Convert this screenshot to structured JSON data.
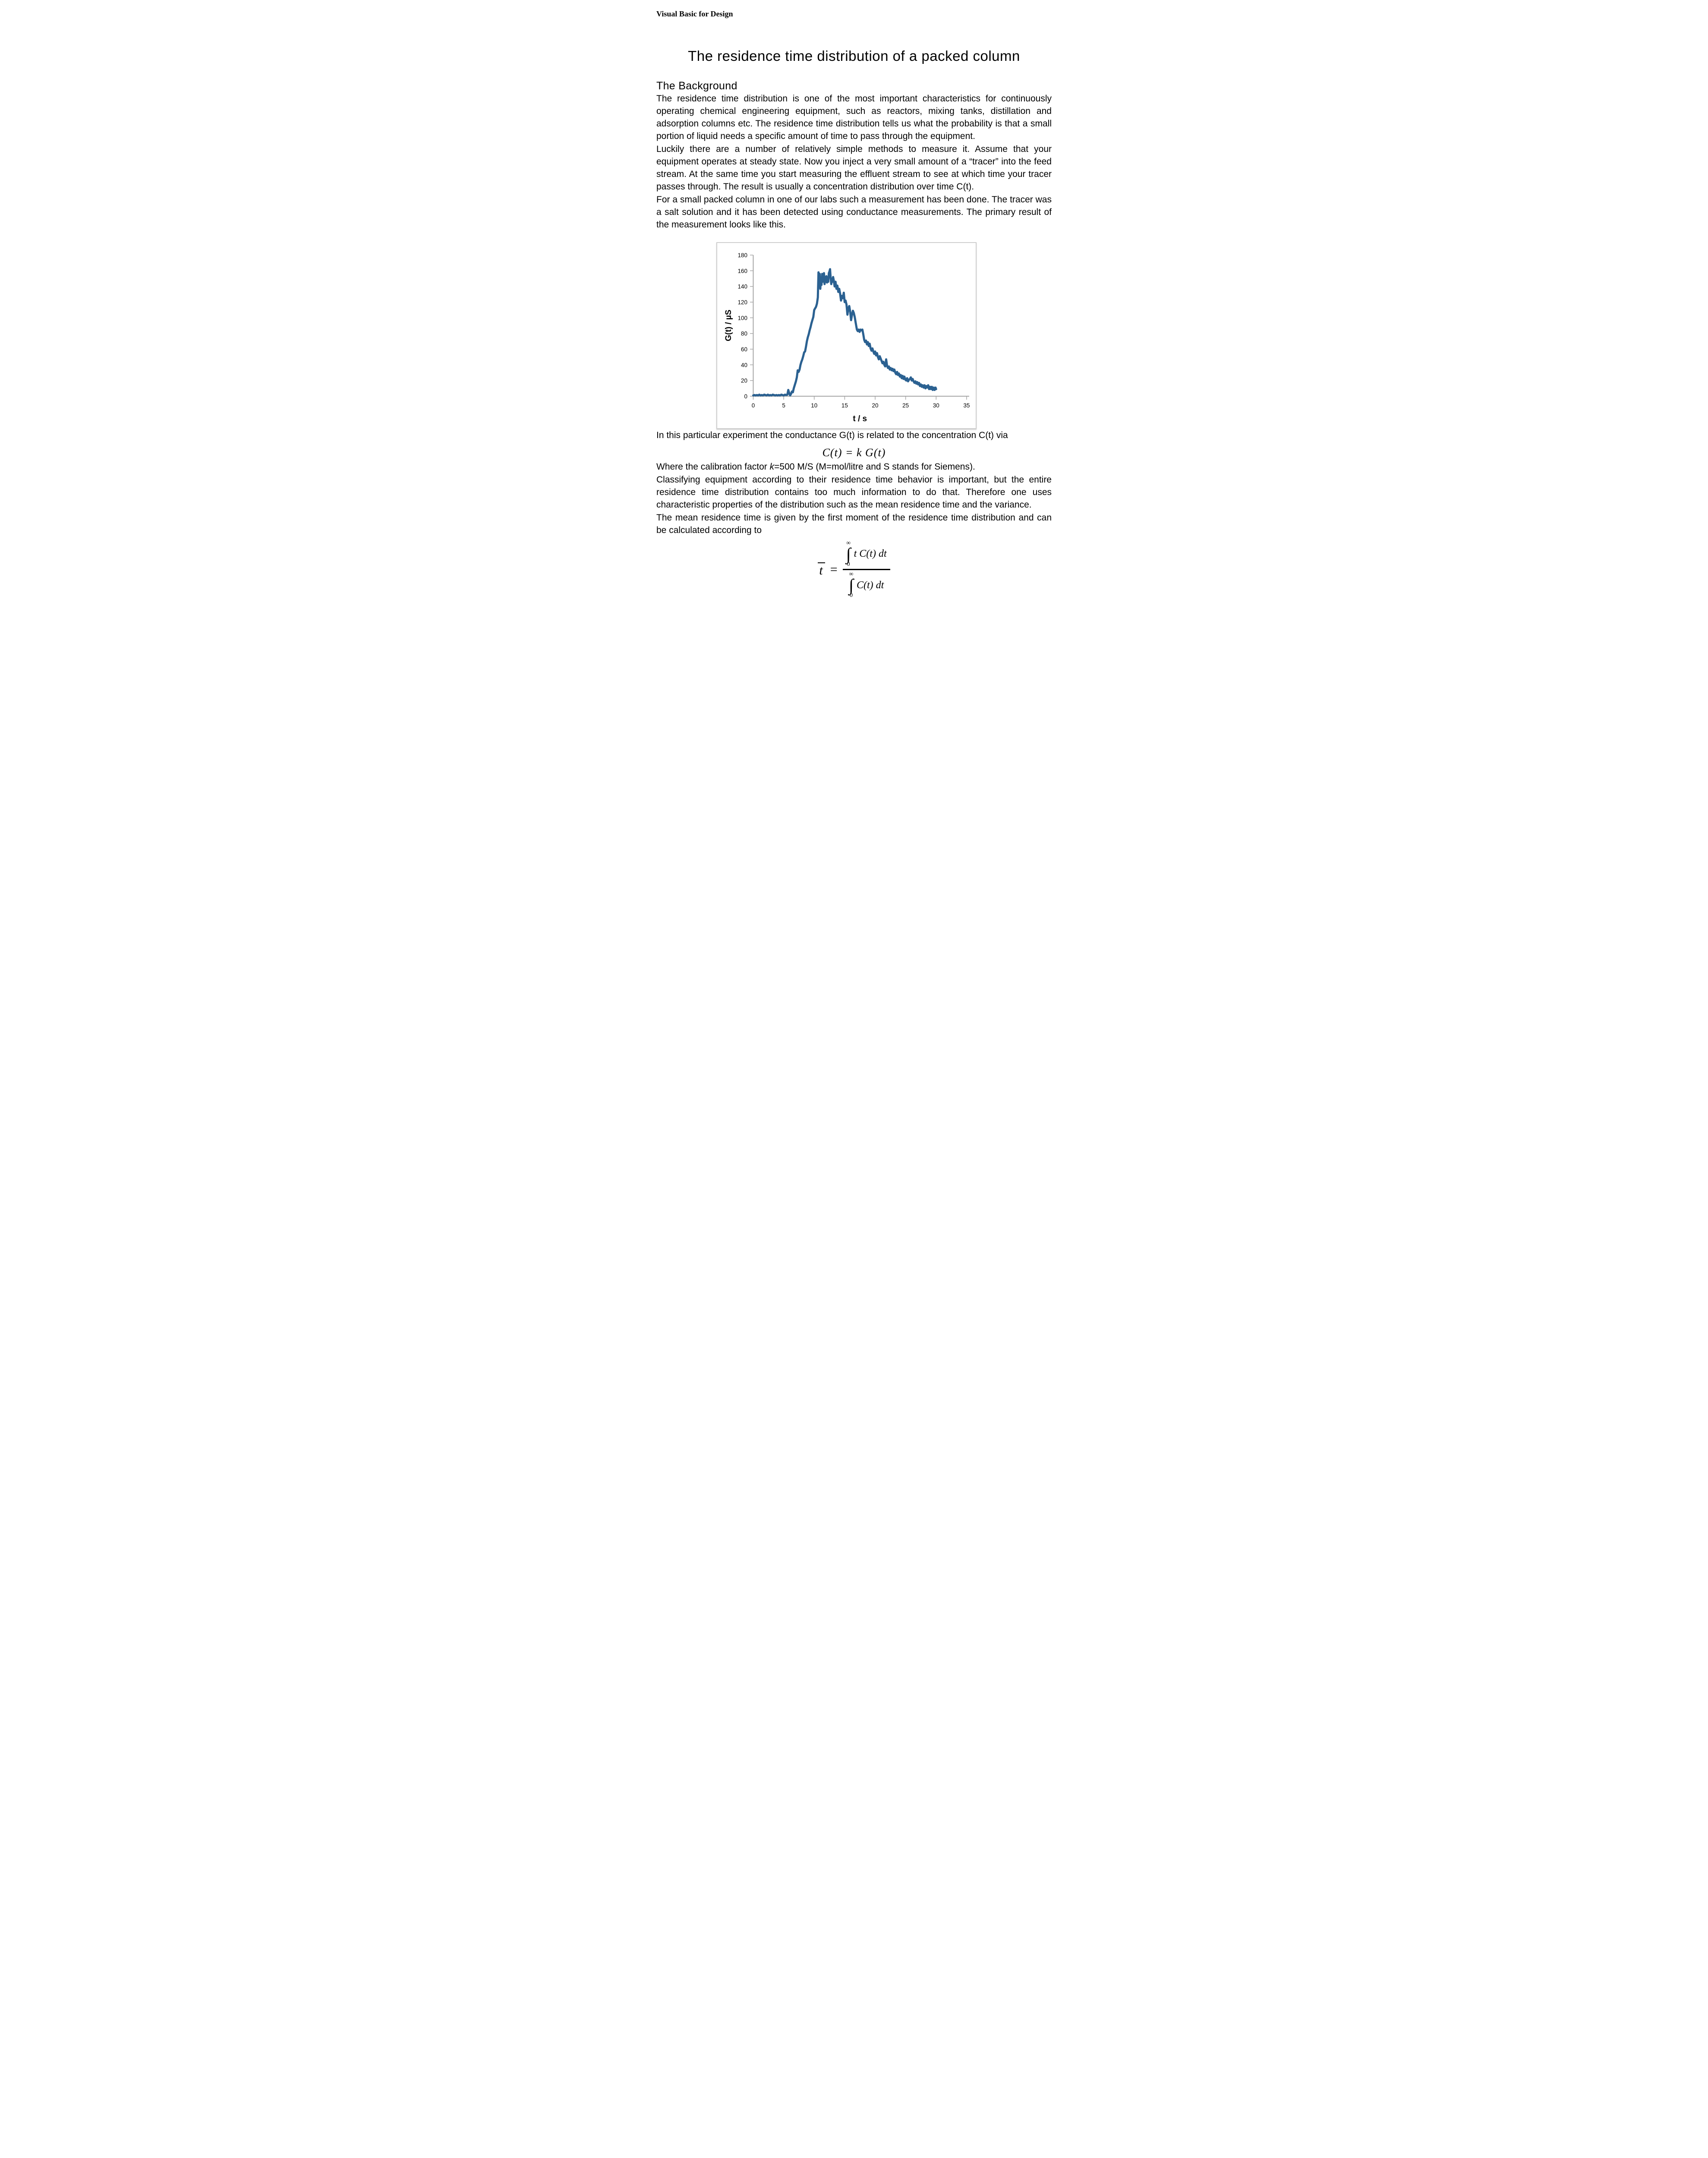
{
  "header": {
    "text": "Visual Basic for Design"
  },
  "title": "The residence time distribution of a packed column",
  "sections": {
    "background_heading": "The Background"
  },
  "paragraphs": {
    "p1": "The residence time distribution is one of the most important characteristics for continuously operating chemical engineering equipment, such as reactors, mixing tanks, distillation and adsorption columns etc. The residence time distribution tells us what the probability is that a small portion of liquid needs a specific amount of time to pass through the equipment.",
    "p2": "Luckily there are a number of relatively simple methods to measure it. Assume that your equipment operates at steady state. Now you inject a very small amount of a “tracer” into the feed stream. At the same time you start measuring the effluent stream to see at which time your tracer passes through. The result is usually a concentration distribution over time C(t).",
    "p3": "For a small packed column in one of our labs such a measurement has been done. The tracer was a salt solution and it has been detected using conductance measurements. The primary result of the measurement looks like this.",
    "p4": "In this particular experiment the conductance G(t) is related to the concentration C(t) via",
    "p5_before": "Where the calibration factor ",
    "p5_k": "k",
    "p5_after": "=500 M/S (M=mol/litre and S stands for Siemens).",
    "p6": "Classifying equipment according to their residence time behavior is important, but the entire residence time distribution contains too much information to do that. Therefore one uses characteristic properties of the distribution such as the mean residence time and the variance.",
    "p7": "The mean residence time is given by the first moment of the residence time distribution and can be calculated according to"
  },
  "formula_concentration": {
    "text": "C(t) = k G(t)"
  },
  "formula_mean": {
    "lhs": "t",
    "equals": "=",
    "infinity": "∞",
    "zero": "0",
    "integral": "∫",
    "numerator": "t C(t) dt",
    "denominator": "C(t) dt"
  },
  "chart_data": {
    "type": "line",
    "title": "",
    "xlabel": "t / s",
    "ylabel": "G(t) / µS",
    "xlim": [
      0,
      35
    ],
    "ylim": [
      0,
      180
    ],
    "x_ticks": [
      0,
      5,
      10,
      15,
      20,
      25,
      30,
      35
    ],
    "y_ticks": [
      0,
      20,
      40,
      60,
      80,
      100,
      120,
      140,
      160,
      180
    ],
    "grid": false,
    "legend_position": "none",
    "line_color": "#2B6191",
    "axis_color": "#A6A6A6",
    "series": [
      {
        "name": "G(t)",
        "points": [
          [
            0,
            1
          ],
          [
            0.2,
            1.5
          ],
          [
            0.4,
            1
          ],
          [
            0.6,
            1.5
          ],
          [
            0.8,
            1
          ],
          [
            1,
            2
          ],
          [
            1.2,
            1
          ],
          [
            1.4,
            1.5
          ],
          [
            1.6,
            1
          ],
          [
            1.8,
            2
          ],
          [
            2,
            1.5
          ],
          [
            2.2,
            1
          ],
          [
            2.4,
            2
          ],
          [
            2.6,
            1
          ],
          [
            2.8,
            1.5
          ],
          [
            3,
            1
          ],
          [
            3.2,
            2
          ],
          [
            3.4,
            1.5
          ],
          [
            3.6,
            1
          ],
          [
            3.8,
            1.5
          ],
          [
            4,
            1
          ],
          [
            4.2,
            1.5
          ],
          [
            4.4,
            1
          ],
          [
            4.6,
            2
          ],
          [
            4.8,
            1.5
          ],
          [
            5,
            1
          ],
          [
            5.2,
            2
          ],
          [
            5.4,
            1.5
          ],
          [
            5.6,
            2
          ],
          [
            5.75,
            8
          ],
          [
            5.9,
            4
          ],
          [
            6.05,
            1
          ],
          [
            6.2,
            3
          ],
          [
            6.35,
            6
          ],
          [
            6.5,
            5
          ],
          [
            6.65,
            10
          ],
          [
            6.8,
            14
          ],
          [
            7,
            19
          ],
          [
            7.15,
            24
          ],
          [
            7.3,
            33
          ],
          [
            7.45,
            31
          ],
          [
            7.6,
            34
          ],
          [
            7.75,
            40
          ],
          [
            7.9,
            44
          ],
          [
            8.05,
            47
          ],
          [
            8.2,
            51
          ],
          [
            8.35,
            56
          ],
          [
            8.5,
            57
          ],
          [
            8.65,
            63
          ],
          [
            8.8,
            70
          ],
          [
            8.95,
            75
          ],
          [
            9.1,
            79
          ],
          [
            9.25,
            84
          ],
          [
            9.4,
            88
          ],
          [
            9.55,
            93
          ],
          [
            9.7,
            97
          ],
          [
            9.85,
            101
          ],
          [
            10,
            110
          ],
          [
            10.15,
            112
          ],
          [
            10.3,
            114
          ],
          [
            10.45,
            118
          ],
          [
            10.6,
            126
          ],
          [
            10.7,
            158
          ],
          [
            10.8,
            145
          ],
          [
            10.9,
            156
          ],
          [
            11,
            137
          ],
          [
            11.1,
            150
          ],
          [
            11.2,
            142
          ],
          [
            11.3,
            156
          ],
          [
            11.4,
            146
          ],
          [
            11.5,
            151
          ],
          [
            11.6,
            157
          ],
          [
            11.7,
            143
          ],
          [
            11.8,
            152
          ],
          [
            11.9,
            146
          ],
          [
            12,
            153
          ],
          [
            12.1,
            145
          ],
          [
            12.2,
            150
          ],
          [
            12.3,
            146
          ],
          [
            12.4,
            157
          ],
          [
            12.5,
            159
          ],
          [
            12.6,
            162
          ],
          [
            12.7,
            151
          ],
          [
            12.8,
            143
          ],
          [
            12.9,
            150
          ],
          [
            13,
            146
          ],
          [
            13.1,
            152
          ],
          [
            13.2,
            148
          ],
          [
            13.35,
            140
          ],
          [
            13.5,
            146
          ],
          [
            13.65,
            137
          ],
          [
            13.8,
            141
          ],
          [
            13.95,
            133
          ],
          [
            14.1,
            137
          ],
          [
            14.25,
            131
          ],
          [
            14.4,
            122
          ],
          [
            14.55,
            128
          ],
          [
            14.7,
            125
          ],
          [
            14.85,
            132
          ],
          [
            15,
            120
          ],
          [
            15.15,
            122
          ],
          [
            15.3,
            117
          ],
          [
            15.45,
            104
          ],
          [
            15.6,
            112
          ],
          [
            15.75,
            115
          ],
          [
            15.9,
            108
          ],
          [
            16.05,
            97
          ],
          [
            16.2,
            104
          ],
          [
            16.35,
            109
          ],
          [
            16.5,
            106
          ],
          [
            16.65,
            101
          ],
          [
            16.8,
            94
          ],
          [
            17,
            85
          ],
          [
            17.15,
            83
          ],
          [
            17.3,
            85
          ],
          [
            17.45,
            82
          ],
          [
            17.6,
            85
          ],
          [
            17.75,
            84
          ],
          [
            17.9,
            85
          ],
          [
            18.05,
            79
          ],
          [
            18.2,
            72
          ],
          [
            18.35,
            69
          ],
          [
            18.5,
            71
          ],
          [
            18.65,
            66
          ],
          [
            18.8,
            69
          ],
          [
            18.95,
            64
          ],
          [
            19.1,
            67
          ],
          [
            19.25,
            61
          ],
          [
            19.4,
            58
          ],
          [
            19.55,
            61
          ],
          [
            19.7,
            57
          ],
          [
            19.85,
            54
          ],
          [
            20,
            57
          ],
          [
            20.15,
            52
          ],
          [
            20.3,
            55
          ],
          [
            20.45,
            50
          ],
          [
            20.6,
            47
          ],
          [
            20.75,
            51
          ],
          [
            20.9,
            48
          ],
          [
            21.05,
            45
          ],
          [
            21.2,
            42
          ],
          [
            21.35,
            44
          ],
          [
            21.5,
            40
          ],
          [
            21.65,
            38
          ],
          [
            21.8,
            47
          ],
          [
            21.95,
            39
          ],
          [
            22.1,
            36
          ],
          [
            22.25,
            38
          ],
          [
            22.4,
            34
          ],
          [
            22.55,
            36
          ],
          [
            22.7,
            33
          ],
          [
            22.85,
            35
          ],
          [
            23,
            32
          ],
          [
            23.15,
            34
          ],
          [
            23.3,
            30
          ],
          [
            23.45,
            28
          ],
          [
            23.6,
            31
          ],
          [
            23.75,
            27
          ],
          [
            23.9,
            29
          ],
          [
            24.05,
            25
          ],
          [
            24.2,
            27
          ],
          [
            24.35,
            23
          ],
          [
            24.5,
            26
          ],
          [
            24.65,
            22
          ],
          [
            24.8,
            25
          ],
          [
            24.95,
            21
          ],
          [
            25.1,
            20
          ],
          [
            25.25,
            23
          ],
          [
            25.4,
            19
          ],
          [
            25.55,
            21
          ],
          [
            25.7,
            22
          ],
          [
            25.85,
            24
          ],
          [
            26,
            20
          ],
          [
            26.15,
            22
          ],
          [
            26.3,
            19
          ],
          [
            26.45,
            17
          ],
          [
            26.6,
            19
          ],
          [
            26.75,
            16
          ],
          [
            26.9,
            18
          ],
          [
            27.05,
            15
          ],
          [
            27.2,
            17
          ],
          [
            27.35,
            13
          ],
          [
            27.5,
            15
          ],
          [
            27.65,
            12
          ],
          [
            27.8,
            14
          ],
          [
            27.95,
            11
          ],
          [
            28.1,
            14
          ],
          [
            28.25,
            10
          ],
          [
            28.4,
            13
          ],
          [
            28.55,
            11
          ],
          [
            28.7,
            14
          ],
          [
            28.85,
            9
          ],
          [
            29,
            12
          ],
          [
            29.15,
            9
          ],
          [
            29.3,
            12
          ],
          [
            29.45,
            8
          ],
          [
            29.6,
            11
          ],
          [
            29.75,
            8
          ],
          [
            29.9,
            11
          ],
          [
            30,
            9
          ]
        ]
      }
    ]
  }
}
